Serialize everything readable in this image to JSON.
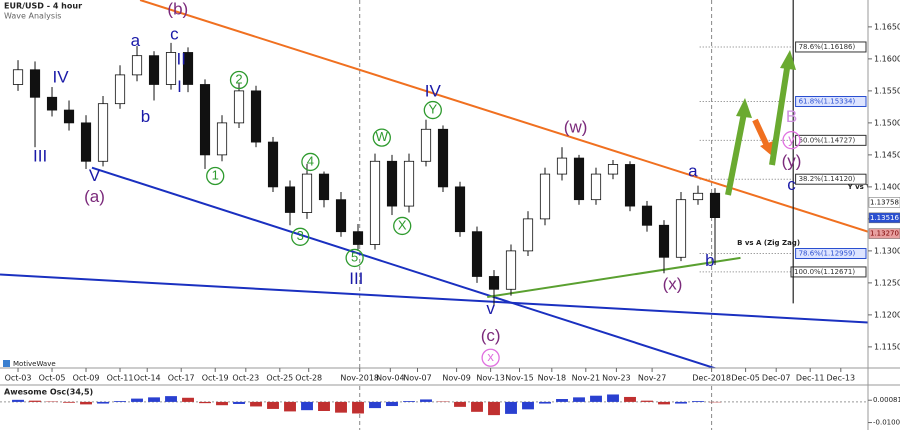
{
  "header": {
    "title": "EUR/USD - 4 hour",
    "subtitle": "Wave Analysis",
    "brand": "MotiveWave"
  },
  "chart_data": [
    {
      "type": "candlestick",
      "x": [
        0,
        1,
        2,
        3,
        4,
        5,
        6,
        7,
        8,
        9,
        10,
        11,
        12,
        13,
        14,
        15,
        16,
        17,
        18,
        19,
        20,
        21,
        22,
        23,
        24,
        25,
        26,
        27,
        28,
        29,
        30,
        31,
        32,
        33,
        34,
        35,
        36,
        37,
        38,
        39,
        40,
        41
      ],
      "open": [
        1.156,
        1.1583,
        1.154,
        1.152,
        1.15,
        1.144,
        1.153,
        1.1575,
        1.1605,
        1.156,
        1.161,
        1.156,
        1.145,
        1.15,
        1.155,
        1.147,
        1.14,
        1.136,
        1.142,
        1.138,
        1.133,
        1.131,
        1.144,
        1.137,
        1.144,
        1.149,
        1.14,
        1.133,
        1.126,
        1.124,
        1.13,
        1.135,
        1.142,
        1.1445,
        1.138,
        1.142,
        1.1435,
        1.137,
        1.134,
        1.129,
        1.138,
        1.139
      ],
      "high": [
        1.1598,
        1.1596,
        1.1556,
        1.1535,
        1.1512,
        1.1542,
        1.159,
        1.162,
        1.1612,
        1.1625,
        1.1618,
        1.1568,
        1.1512,
        1.1562,
        1.1558,
        1.1478,
        1.141,
        1.1436,
        1.1424,
        1.1392,
        1.1342,
        1.1452,
        1.145,
        1.1452,
        1.1505,
        1.1496,
        1.1408,
        1.1338,
        1.127,
        1.131,
        1.1362,
        1.143,
        1.1462,
        1.145,
        1.143,
        1.1442,
        1.144,
        1.1378,
        1.1348,
        1.1392,
        1.1402,
        1.1398
      ],
      "low": [
        1.155,
        1.1462,
        1.151,
        1.1488,
        1.1428,
        1.1432,
        1.1522,
        1.1565,
        1.1535,
        1.1552,
        1.1548,
        1.1428,
        1.144,
        1.1492,
        1.1462,
        1.1392,
        1.134,
        1.135,
        1.1368,
        1.1322,
        1.13,
        1.1302,
        1.1356,
        1.136,
        1.1432,
        1.1392,
        1.1322,
        1.125,
        1.1215,
        1.123,
        1.1292,
        1.134,
        1.141,
        1.1372,
        1.1372,
        1.1412,
        1.1362,
        1.133,
        1.1265,
        1.1284,
        1.1372,
        1.1278
      ],
      "close": [
        1.1583,
        1.154,
        1.152,
        1.15,
        1.144,
        1.153,
        1.1575,
        1.1605,
        1.156,
        1.161,
        1.156,
        1.145,
        1.15,
        1.155,
        1.147,
        1.14,
        1.136,
        1.142,
        1.138,
        1.133,
        1.131,
        1.144,
        1.137,
        1.144,
        1.149,
        1.14,
        1.133,
        1.126,
        1.124,
        1.13,
        1.135,
        1.142,
        1.1445,
        1.138,
        1.142,
        1.1435,
        1.137,
        1.134,
        1.129,
        1.138,
        1.139,
        1.1352
      ],
      "up_color": "#ffffff",
      "down_color": "#111111",
      "xlim": [
        -1.06,
        50.0
      ],
      "ylim": [
        1.1117,
        1.1692
      ],
      "xticks": [
        {
          "value": 0,
          "label": "Oct-03"
        },
        {
          "value": 2,
          "label": "Oct-05"
        },
        {
          "value": 4,
          "label": "Oct-09"
        },
        {
          "value": 6,
          "label": "Oct-11"
        },
        {
          "value": 7.6,
          "label": "Oct-14"
        },
        {
          "value": 9.6,
          "label": "Oct-17"
        },
        {
          "value": 11.6,
          "label": "Oct-19"
        },
        {
          "value": 13.4,
          "label": "Oct-23"
        },
        {
          "value": 15.4,
          "label": "Oct-25"
        },
        {
          "value": 17.1,
          "label": "Oct-28"
        },
        {
          "value": 20.1,
          "label": "Nov-2018"
        },
        {
          "value": 21.9,
          "label": "Nov-04"
        },
        {
          "value": 23.5,
          "label": "Nov-07"
        },
        {
          "value": 25.8,
          "label": "Nov-09"
        },
        {
          "value": 27.8,
          "label": "Nov-13"
        },
        {
          "value": 29.5,
          "label": "Nov-15"
        },
        {
          "value": 31.4,
          "label": "Nov-18"
        },
        {
          "value": 33.4,
          "label": "Nov-21"
        },
        {
          "value": 35.2,
          "label": "Nov-23"
        },
        {
          "value": 37.3,
          "label": "Nov-27"
        },
        {
          "value": 40.8,
          "label": "Dec-2018"
        },
        {
          "value": 42.8,
          "label": "Dec-05"
        },
        {
          "value": 44.6,
          "label": "Dec-07"
        },
        {
          "value": 46.6,
          "label": "Dec-11"
        },
        {
          "value": 48.4,
          "label": "Dec-13"
        }
      ],
      "separators": [
        20.1,
        40.8
      ],
      "yticks": [
        {
          "value": 1.115,
          "label": "1.1150"
        },
        {
          "value": 1.12,
          "label": "1.1200"
        },
        {
          "value": 1.125,
          "label": "1.1250"
        },
        {
          "value": 1.13,
          "label": "1.1300"
        },
        {
          "value": 1.135,
          "label": "1.1350"
        },
        {
          "value": 1.14,
          "label": "1.1400"
        },
        {
          "value": 1.145,
          "label": "1.1450"
        },
        {
          "value": 1.15,
          "label": "1.1500"
        },
        {
          "value": 1.155,
          "label": "1.1550"
        },
        {
          "value": 1.16,
          "label": "1.1600"
        },
        {
          "value": 1.165,
          "label": "1.1650"
        }
      ],
      "fib_levels": [
        {
          "value": 1.16186,
          "label": "78.6%(1.16186)",
          "color": "#333333"
        },
        {
          "value": 1.15334,
          "label": "61.8%(1.15334)",
          "color": "#2a4fd0"
        },
        {
          "value": 1.14727,
          "label": "50.0%(1.14727)",
          "color": "#333333"
        },
        {
          "value": 1.1412,
          "label": "38.2%(1.14120)",
          "color": "#333333"
        },
        {
          "value": 1.12959,
          "label": "78.6%(1.12959)",
          "color": "#2a4fd0"
        },
        {
          "value": 1.12671,
          "label": "100.0%(1.12671)",
          "color": "#333333"
        }
      ],
      "fib_start": 40.1,
      "price_labels": [
        {
          "value": 1.13758,
          "label": "1.13758",
          "color": "#ffffff",
          "text_color": "#111111"
        },
        {
          "value": 1.13516,
          "label": "1.13516",
          "color": "#2a4fd0",
          "text_color": "#ffffff"
        },
        {
          "value": 1.1327,
          "label": "1.13270",
          "color": "#e8a0a0",
          "text_color": "#7a0000"
        }
      ],
      "lines": [
        {
          "color": "#f07020",
          "x": [
            7.18,
            51.9
          ],
          "y": [
            1.1692,
            1.1314
          ]
        },
        {
          "color": "#1a30c0",
          "x": [
            4.35,
            41.3
          ],
          "y": [
            1.143,
            1.1114
          ]
        },
        {
          "color": "#1a30c0",
          "x": [
            -1.06,
            50.1
          ],
          "y": [
            1.1263,
            1.1188
          ]
        },
        {
          "color": "#5aa030",
          "x": [
            27.6,
            42.5
          ],
          "y": [
            1.1228,
            1.1289
          ]
        },
        {
          "color": "#222222",
          "x": [
            45.6,
            45.6
          ],
          "y": [
            1.1692,
            1.1218
          ]
        }
      ],
      "annotations": [
        {
          "text": "(b)",
          "x": 9.4,
          "y": 1.1676,
          "color": "#7b2a7b"
        },
        {
          "text": "a",
          "x": 6.9,
          "y": 1.1627,
          "color": "#1a1aa8"
        },
        {
          "text": "b",
          "x": 7.5,
          "y": 1.1508,
          "color": "#1a1aa8"
        },
        {
          "text": "c",
          "x": 9.2,
          "y": 1.1637,
          "color": "#1a1aa8"
        },
        {
          "text": "II",
          "x": 9.6,
          "y": 1.1598,
          "color": "#1a1aa8"
        },
        {
          "text": "I",
          "x": 9.5,
          "y": 1.1555,
          "color": "#1a1aa8"
        },
        {
          "text": "IV",
          "x": 2.5,
          "y": 1.157,
          "color": "#1a1aa8"
        },
        {
          "text": "III",
          "x": 1.3,
          "y": 1.1447,
          "color": "#1a1aa8"
        },
        {
          "text": "V",
          "x": 4.5,
          "y": 1.1416,
          "color": "#1a1aa8"
        },
        {
          "text": "(a)",
          "x": 4.5,
          "y": 1.1383,
          "color": "#7b2a7b"
        },
        {
          "text": "1",
          "x": 11.6,
          "y": 1.1417,
          "color": "#2e9a2e",
          "circled": true
        },
        {
          "text": "2",
          "x": 13.0,
          "y": 1.1567,
          "color": "#2e9a2e",
          "circled": true
        },
        {
          "text": "3",
          "x": 16.6,
          "y": 1.1322,
          "color": "#2e9a2e",
          "circled": true
        },
        {
          "text": "4",
          "x": 17.2,
          "y": 1.1439,
          "color": "#2e9a2e",
          "circled": true
        },
        {
          "text": "5",
          "x": 19.8,
          "y": 1.1289,
          "color": "#2e9a2e",
          "circled": true
        },
        {
          "text": "W",
          "x": 21.4,
          "y": 1.1477,
          "color": "#2e9a2e",
          "circled": true
        },
        {
          "text": "X",
          "x": 22.6,
          "y": 1.1339,
          "color": "#2e9a2e",
          "circled": true
        },
        {
          "text": "Y",
          "x": 24.4,
          "y": 1.152,
          "color": "#2e9a2e",
          "circled": true
        },
        {
          "text": "III",
          "x": 19.9,
          "y": 1.1255,
          "color": "#1a1aa8"
        },
        {
          "text": "IV",
          "x": 24.4,
          "y": 1.1548,
          "color": "#1a1aa8"
        },
        {
          "text": "v",
          "x": 27.8,
          "y": 1.1208,
          "color": "#1a1aa8"
        },
        {
          "text": "(c)",
          "x": 27.8,
          "y": 1.1166,
          "color": "#7b2a7b"
        },
        {
          "text": "x",
          "x": 27.8,
          "y": 1.1133,
          "color": "#e070e0",
          "circled": true
        },
        {
          "text": "(w)",
          "x": 32.8,
          "y": 1.1492,
          "color": "#7b2a7b"
        },
        {
          "text": "(x)",
          "x": 38.5,
          "y": 1.1247,
          "color": "#7b2a7b"
        },
        {
          "text": "a",
          "x": 39.7,
          "y": 1.1423,
          "color": "#1a1aa8"
        },
        {
          "text": "b",
          "x": 40.7,
          "y": 1.1283,
          "color": "#1a1aa8"
        },
        {
          "text": "B",
          "x": 45.5,
          "y": 1.1508,
          "color": "#d090e0"
        },
        {
          "text": "y",
          "x": 45.5,
          "y": 1.1473,
          "color": "#e070e0",
          "circled": true
        },
        {
          "text": "(y)",
          "x": 45.5,
          "y": 1.1439,
          "color": "#7b2a7b"
        },
        {
          "text": "c",
          "x": 45.5,
          "y": 1.1402,
          "color": "#1a1aa8"
        }
      ],
      "notes": [
        {
          "text": "Y vs W",
          "x": 48.8,
          "y": 1.14
        },
        {
          "text": "B vs A (Zig Zag)",
          "x": 42.3,
          "y": 1.1312
        }
      ]
    },
    {
      "type": "bar",
      "title": "Awesome Osc(34,5)",
      "x": [
        0,
        1,
        2,
        3,
        4,
        5,
        6,
        7,
        8,
        9,
        10,
        11,
        12,
        13,
        14,
        15,
        16,
        17,
        18,
        19,
        20,
        21,
        22,
        23,
        24,
        25,
        26,
        27,
        28,
        29,
        30,
        31,
        32,
        33,
        34,
        35,
        36,
        37,
        38,
        39,
        40,
        41
      ],
      "values": [
        0.001,
        0.0006,
        0.0002,
        -0.0004,
        -0.0012,
        -0.0008,
        0.0004,
        0.0016,
        0.0022,
        0.0028,
        0.002,
        -0.0006,
        -0.0016,
        -0.001,
        -0.0022,
        -0.0034,
        -0.0046,
        -0.004,
        -0.0044,
        -0.0052,
        -0.0056,
        -0.003,
        -0.002,
        0.0004,
        0.0012,
        0.0002,
        -0.0024,
        -0.0048,
        -0.0064,
        -0.0058,
        -0.0036,
        -0.0008,
        0.0014,
        0.0022,
        0.003,
        0.0036,
        0.0024,
        0.0006,
        -0.0012,
        -0.0008,
        0.0004,
        -0.0002
      ],
      "up_color": "#2a40d0",
      "down_color": "#c03030",
      "xlim": [
        -1.06,
        50.0
      ],
      "ylim": [
        -0.0136,
        0.0077
      ],
      "yticks": [
        {
          "value": 0.00081,
          "label": "0.00081"
        },
        {
          "value": -0.01,
          "label": "-0.01000"
        }
      ]
    }
  ]
}
